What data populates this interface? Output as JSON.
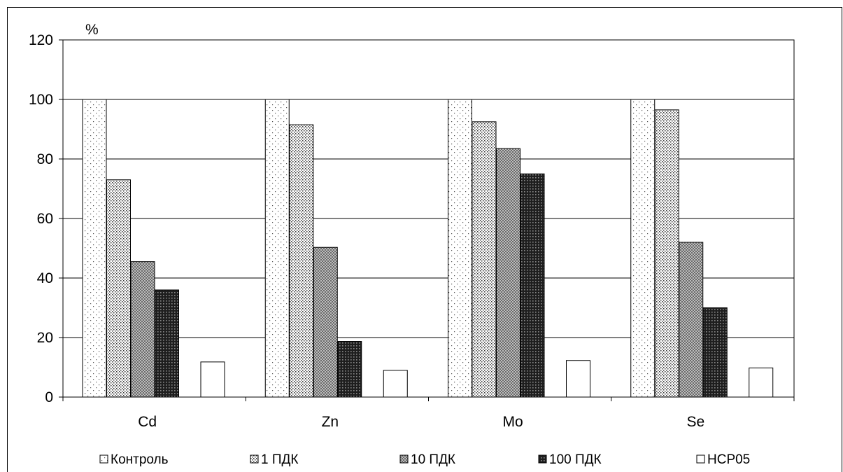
{
  "chart_data": {
    "type": "bar",
    "title": "",
    "ylabel": "%",
    "xlabel": "",
    "ylim": [
      0,
      120
    ],
    "yticks": [
      0,
      20,
      40,
      60,
      80,
      100,
      120
    ],
    "categories": [
      "Cd",
      "Zn",
      "Mo",
      "Se"
    ],
    "grid": true,
    "legend_position": "bottom",
    "series": [
      {
        "name": "Контроль",
        "values": [
          100,
          100,
          100,
          100
        ],
        "pattern": "sparse-dots"
      },
      {
        "name": "1 ПДК",
        "values": [
          73,
          91.5,
          92.5,
          96.5
        ],
        "pattern": "dense-dots"
      },
      {
        "name": "10 ПДК",
        "values": [
          45.5,
          50.3,
          83.5,
          52
        ],
        "pattern": "crosshatch"
      },
      {
        "name": "100 ПДК",
        "values": [
          36,
          18.7,
          75,
          30
        ],
        "pattern": "dark-crosshatch"
      },
      {
        "name": "НСР05",
        "values": [
          11.8,
          9.0,
          12.3,
          9.8
        ],
        "pattern": "white"
      }
    ]
  }
}
